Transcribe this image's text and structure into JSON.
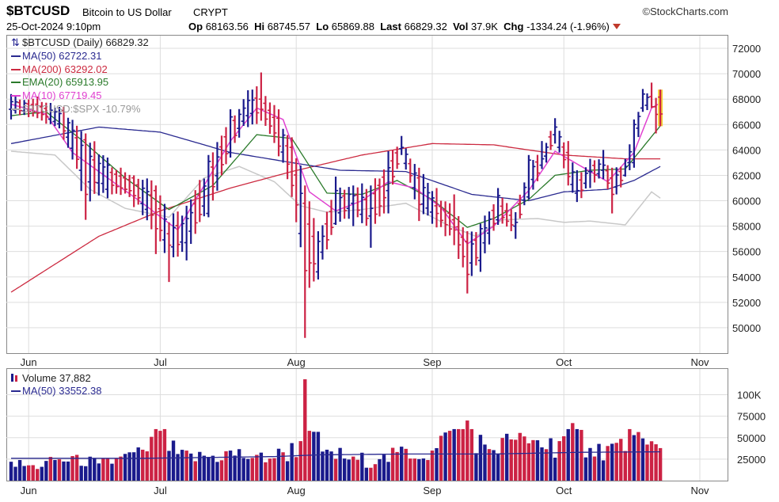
{
  "header": {
    "symbol": "$BTCUSD",
    "name": "Bitcoin to US Dollar",
    "exchange": "CRYPT",
    "brand": "©StockCharts.com",
    "date": "25-Oct-2024 9:10pm",
    "open_label": "Op",
    "open": "68163.56",
    "high_label": "Hi",
    "high": "68745.57",
    "low_label": "Lo",
    "low": "65869.88",
    "last_label": "Last",
    "last": "66829.32",
    "vol_label": "Vol",
    "vol": "37.9K",
    "chg_label": "Chg",
    "chg": "-1334.24 (-1.96%)"
  },
  "legend": {
    "price": "$BTCUSD (Daily) 66829.32",
    "ma50": "MA(50) 62722.31",
    "ma200": "MA(200) 63292.02",
    "ema20": "EMA(20) 65913.95",
    "ma10": "MA(10) 67719.45",
    "rel": "$BTCUSD:$SPX -10.79%",
    "volume": "Volume 37,882",
    "volma50": "MA(50) 33552.38"
  },
  "colors": {
    "up": "#1a1a8c",
    "down": "#cc2244",
    "ma50": "#2a2a90",
    "ma200": "#cc2a40",
    "ema20": "#2a7a2a",
    "ma10": "#e040d0",
    "rel": "#c8c8c8",
    "grid": "#dddddd"
  },
  "chart_data": [
    {
      "type": "line",
      "subtype": "ohlc",
      "ylim": [
        48000,
        73000
      ],
      "y_ticks": [
        "72000",
        "70000",
        "68000",
        "66000",
        "64000",
        "62000",
        "60000",
        "58000",
        "56000",
        "54000",
        "52000",
        "50000"
      ],
      "x_labels": [
        "Jun",
        "Jul",
        "Aug",
        "Sep",
        "Oct",
        "Nov"
      ],
      "x_label_days": [
        4,
        34,
        65,
        96,
        126,
        157
      ],
      "last_day": 148,
      "ohlc_sampled": [
        {
          "d": 0,
          "o": 67200,
          "h": 68400,
          "l": 66400,
          "c": 67800
        },
        {
          "d": 6,
          "o": 67600,
          "h": 68200,
          "l": 66500,
          "c": 66900
        },
        {
          "d": 12,
          "o": 67100,
          "h": 67400,
          "l": 64800,
          "c": 65500
        },
        {
          "d": 17,
          "o": 64800,
          "h": 65300,
          "l": 58500,
          "c": 60500
        },
        {
          "d": 22,
          "o": 60900,
          "h": 63400,
          "l": 60200,
          "c": 62800
        },
        {
          "d": 28,
          "o": 61800,
          "h": 62000,
          "l": 59500,
          "c": 60400
        },
        {
          "d": 33,
          "o": 60800,
          "h": 61200,
          "l": 55800,
          "c": 57800
        },
        {
          "d": 36,
          "o": 57400,
          "h": 58300,
          "l": 53600,
          "c": 56500
        },
        {
          "d": 40,
          "o": 56700,
          "h": 59600,
          "l": 55300,
          "c": 58600
        },
        {
          "d": 45,
          "o": 59000,
          "h": 63600,
          "l": 58700,
          "c": 63100
        },
        {
          "d": 50,
          "o": 63800,
          "h": 67200,
          "l": 63400,
          "c": 66600
        },
        {
          "d": 54,
          "o": 66700,
          "h": 68700,
          "l": 65800,
          "c": 67900
        },
        {
          "d": 57,
          "o": 68000,
          "h": 70100,
          "l": 66300,
          "c": 67200
        },
        {
          "d": 61,
          "o": 66500,
          "h": 67200,
          "l": 63500,
          "c": 64300
        },
        {
          "d": 64,
          "o": 64200,
          "h": 65000,
          "l": 60300,
          "c": 61200
        },
        {
          "d": 67,
          "o": 59800,
          "h": 61200,
          "l": 49200,
          "c": 54500
        },
        {
          "d": 70,
          "o": 54400,
          "h": 57600,
          "l": 53800,
          "c": 56800
        },
        {
          "d": 74,
          "o": 58200,
          "h": 61900,
          "l": 58100,
          "c": 60800
        },
        {
          "d": 78,
          "o": 59800,
          "h": 61200,
          "l": 58000,
          "c": 60400
        },
        {
          "d": 82,
          "o": 58800,
          "h": 61200,
          "l": 56300,
          "c": 59400
        },
        {
          "d": 86,
          "o": 60800,
          "h": 63900,
          "l": 59000,
          "c": 62600
        },
        {
          "d": 89,
          "o": 64100,
          "h": 65100,
          "l": 63600,
          "c": 64200
        },
        {
          "d": 93,
          "o": 61800,
          "h": 62600,
          "l": 58400,
          "c": 59700
        },
        {
          "d": 97,
          "o": 59600,
          "h": 61000,
          "l": 57900,
          "c": 59000
        },
        {
          "d": 101,
          "o": 58500,
          "h": 60500,
          "l": 56500,
          "c": 57700
        },
        {
          "d": 104,
          "o": 56800,
          "h": 57600,
          "l": 52700,
          "c": 54200
        },
        {
          "d": 107,
          "o": 55300,
          "h": 58200,
          "l": 54400,
          "c": 57800
        },
        {
          "d": 111,
          "o": 58500,
          "h": 61000,
          "l": 58100,
          "c": 60400
        },
        {
          "d": 115,
          "o": 58000,
          "h": 59100,
          "l": 57000,
          "c": 58300
        },
        {
          "d": 118,
          "o": 60300,
          "h": 63600,
          "l": 60100,
          "c": 63200
        },
        {
          "d": 121,
          "o": 62800,
          "h": 64700,
          "l": 62500,
          "c": 63300
        },
        {
          "d": 124,
          "o": 65200,
          "h": 66500,
          "l": 64500,
          "c": 65800
        },
        {
          "d": 127,
          "o": 63800,
          "h": 64700,
          "l": 61200,
          "c": 61900
        },
        {
          "d": 129,
          "o": 60600,
          "h": 62400,
          "l": 59900,
          "c": 60800
        },
        {
          "d": 132,
          "o": 62300,
          "h": 63300,
          "l": 61000,
          "c": 62300
        },
        {
          "d": 135,
          "o": 62400,
          "h": 64000,
          "l": 61700,
          "c": 62800
        },
        {
          "d": 137,
          "o": 61800,
          "h": 62600,
          "l": 59000,
          "c": 60500
        },
        {
          "d": 140,
          "o": 62000,
          "h": 63300,
          "l": 61900,
          "c": 62700
        },
        {
          "d": 142,
          "o": 63000,
          "h": 66400,
          "l": 62600,
          "c": 66000
        },
        {
          "d": 144,
          "o": 67300,
          "h": 68800,
          "l": 67000,
          "c": 68400
        },
        {
          "d": 146,
          "o": 68200,
          "h": 69300,
          "l": 67300,
          "c": 67400
        },
        {
          "d": 147,
          "o": 67400,
          "h": 68100,
          "l": 65300,
          "c": 66800
        },
        {
          "d": 148,
          "o": 68160,
          "h": 68750,
          "l": 65870,
          "c": 66830
        }
      ],
      "ma50": [
        [
          0,
          64500
        ],
        [
          20,
          65800
        ],
        [
          34,
          65400
        ],
        [
          50,
          63800
        ],
        [
          64,
          63000
        ],
        [
          75,
          62400
        ],
        [
          90,
          62300
        ],
        [
          105,
          60500
        ],
        [
          118,
          60000
        ],
        [
          126,
          60700
        ],
        [
          136,
          60900
        ],
        [
          142,
          61600
        ],
        [
          148,
          62700
        ]
      ],
      "ma200": [
        [
          0,
          52800
        ],
        [
          20,
          57200
        ],
        [
          34,
          59200
        ],
        [
          50,
          61000
        ],
        [
          64,
          62300
        ],
        [
          80,
          63600
        ],
        [
          96,
          64500
        ],
        [
          110,
          64400
        ],
        [
          126,
          63600
        ],
        [
          140,
          63300
        ],
        [
          148,
          63300
        ]
      ],
      "ema20": [
        [
          0,
          66700
        ],
        [
          8,
          67000
        ],
        [
          16,
          64800
        ],
        [
          26,
          61800
        ],
        [
          36,
          59300
        ],
        [
          46,
          61200
        ],
        [
          56,
          65200
        ],
        [
          64,
          64900
        ],
        [
          72,
          60600
        ],
        [
          80,
          60500
        ],
        [
          88,
          61600
        ],
        [
          96,
          60100
        ],
        [
          104,
          57900
        ],
        [
          110,
          58600
        ],
        [
          118,
          60100
        ],
        [
          124,
          62000
        ],
        [
          132,
          62400
        ],
        [
          140,
          62500
        ],
        [
          148,
          65900
        ]
      ],
      "ma10": [
        [
          0,
          67600
        ],
        [
          8,
          66800
        ],
        [
          14,
          63800
        ],
        [
          22,
          61800
        ],
        [
          30,
          59800
        ],
        [
          38,
          57700
        ],
        [
          44,
          61200
        ],
        [
          50,
          64700
        ],
        [
          56,
          67300
        ],
        [
          62,
          66400
        ],
        [
          68,
          60700
        ],
        [
          74,
          59200
        ],
        [
          80,
          60000
        ],
        [
          86,
          61500
        ],
        [
          92,
          61000
        ],
        [
          98,
          59500
        ],
        [
          104,
          56600
        ],
        [
          110,
          58000
        ],
        [
          118,
          60800
        ],
        [
          124,
          63900
        ],
        [
          130,
          62700
        ],
        [
          136,
          61500
        ],
        [
          142,
          63800
        ],
        [
          146,
          67300
        ],
        [
          148,
          67700
        ]
      ],
      "rel": [
        [
          0,
          63900
        ],
        [
          10,
          63600
        ],
        [
          18,
          60900
        ],
        [
          26,
          59400
        ],
        [
          36,
          58700
        ],
        [
          44,
          61800
        ],
        [
          52,
          62700
        ],
        [
          60,
          61500
        ],
        [
          66,
          59600
        ],
        [
          72,
          59100
        ],
        [
          80,
          59300
        ],
        [
          90,
          59800
        ],
        [
          100,
          58000
        ],
        [
          106,
          57200
        ],
        [
          112,
          58500
        ],
        [
          120,
          58600
        ],
        [
          126,
          58300
        ],
        [
          132,
          58400
        ],
        [
          140,
          58100
        ],
        [
          146,
          60700
        ],
        [
          148,
          60200
        ]
      ]
    },
    {
      "type": "bar",
      "ylim": [
        0,
        130000
      ],
      "y_ticks": [
        "100K",
        "75000",
        "50000",
        "25000"
      ],
      "x_labels": [
        "Jun",
        "Jul",
        "Aug",
        "Sep",
        "Oct",
        "Nov"
      ],
      "volume_sampled": [
        {
          "d": 0,
          "v": 22000,
          "up": true
        },
        {
          "d": 5,
          "v": 18000,
          "up": false
        },
        {
          "d": 10,
          "v": 24000,
          "up": true
        },
        {
          "d": 15,
          "v": 30000,
          "up": false
        },
        {
          "d": 20,
          "v": 20000,
          "up": true
        },
        {
          "d": 25,
          "v": 28000,
          "up": false
        },
        {
          "d": 30,
          "v": 36000,
          "up": false
        },
        {
          "d": 34,
          "v": 58000,
          "up": false
        },
        {
          "d": 38,
          "v": 31000,
          "up": true
        },
        {
          "d": 44,
          "v": 29000,
          "up": true
        },
        {
          "d": 50,
          "v": 35000,
          "up": true
        },
        {
          "d": 56,
          "v": 30000,
          "up": false
        },
        {
          "d": 62,
          "v": 33000,
          "up": false
        },
        {
          "d": 66,
          "v": 46000,
          "up": false
        },
        {
          "d": 67,
          "v": 118000,
          "up": false
        },
        {
          "d": 68,
          "v": 58000,
          "up": false
        },
        {
          "d": 72,
          "v": 36000,
          "up": true
        },
        {
          "d": 78,
          "v": 28000,
          "up": false
        },
        {
          "d": 84,
          "v": 25000,
          "up": true
        },
        {
          "d": 90,
          "v": 37000,
          "up": false
        },
        {
          "d": 96,
          "v": 35000,
          "up": false
        },
        {
          "d": 100,
          "v": 58000,
          "up": false
        },
        {
          "d": 104,
          "v": 70000,
          "up": false
        },
        {
          "d": 108,
          "v": 42000,
          "up": true
        },
        {
          "d": 114,
          "v": 48000,
          "up": false
        },
        {
          "d": 120,
          "v": 47000,
          "up": true
        },
        {
          "d": 125,
          "v": 46000,
          "up": false
        },
        {
          "d": 128,
          "v": 67000,
          "up": false
        },
        {
          "d": 132,
          "v": 38000,
          "up": true
        },
        {
          "d": 138,
          "v": 44000,
          "up": false
        },
        {
          "d": 142,
          "v": 53000,
          "up": true
        },
        {
          "d": 145,
          "v": 42000,
          "up": false
        },
        {
          "d": 148,
          "v": 37882,
          "up": false
        }
      ],
      "vol_ma50": [
        [
          0,
          26000
        ],
        [
          30,
          26000
        ],
        [
          60,
          28000
        ],
        [
          70,
          30000
        ],
        [
          90,
          31000
        ],
        [
          110,
          31000
        ],
        [
          130,
          33000
        ],
        [
          148,
          33550
        ]
      ]
    }
  ]
}
